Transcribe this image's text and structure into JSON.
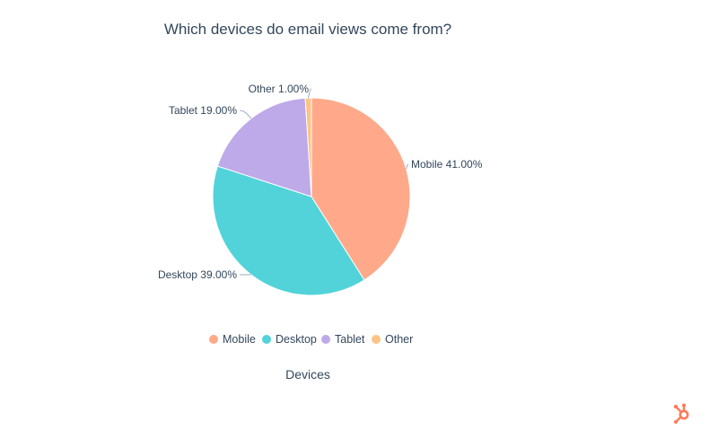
{
  "chart_data": {
    "type": "pie",
    "title": "Which devices do email views come from?",
    "xlabel": "Devices",
    "legend_position": "bottom",
    "label_suffix": "%",
    "slices": [
      {
        "name": "Mobile",
        "value": 41.0,
        "label": "Mobile 41.00%",
        "color": "#ffa98a"
      },
      {
        "name": "Desktop",
        "value": 39.0,
        "label": "Desktop 39.00%",
        "color": "#51d3d9"
      },
      {
        "name": "Tablet",
        "value": 19.0,
        "label": "Tablet 19.00%",
        "color": "#bea9e9"
      },
      {
        "name": "Other",
        "value": 1.0,
        "label": "Other 1.00%",
        "color": "#fdc386"
      }
    ]
  },
  "logo": {
    "name": "sprocket-icon",
    "color": "#ff7a59"
  }
}
